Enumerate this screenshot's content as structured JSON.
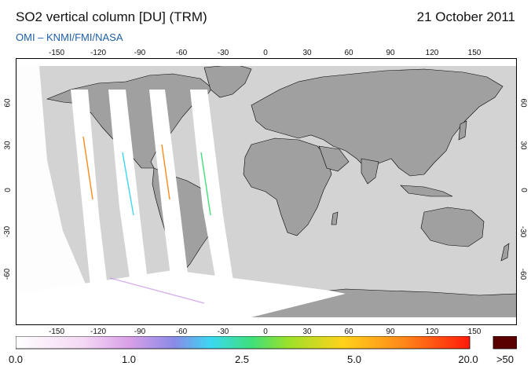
{
  "header": {
    "title": "SO2 vertical column [DU] (TRM)",
    "date": "21 October 2011",
    "credit": "OMI  –  KNMI/FMI/NASA"
  },
  "map": {
    "lon_ticks": [
      "-150",
      "-120",
      "-90",
      "-60",
      "-30",
      "0",
      "30",
      "60",
      "90",
      "120",
      "150"
    ],
    "lat_ticks": [
      "60",
      "30",
      "0",
      "-30",
      "-60"
    ],
    "projection": "equirectangular",
    "lon_range": [
      -180,
      180
    ],
    "lat_range": [
      -90,
      90
    ],
    "colors": {
      "land": "#a0a0a0",
      "ocean": "#d3d3d3",
      "no_data": "#ffffff",
      "coast": "#000000"
    }
  },
  "colorbar": {
    "labels": [
      "0.0",
      "1.0",
      "2.5",
      "5.0",
      "20.0",
      ">50"
    ],
    "colors": [
      "#ffffff",
      "#f4d8f4",
      "#b97be0",
      "#7a7ae0",
      "#3ad8f2",
      "#3fe07a",
      "#9be12a",
      "#ffd21a",
      "#ff8a1a",
      "#ff1a0a",
      "#5a0000"
    ]
  }
}
